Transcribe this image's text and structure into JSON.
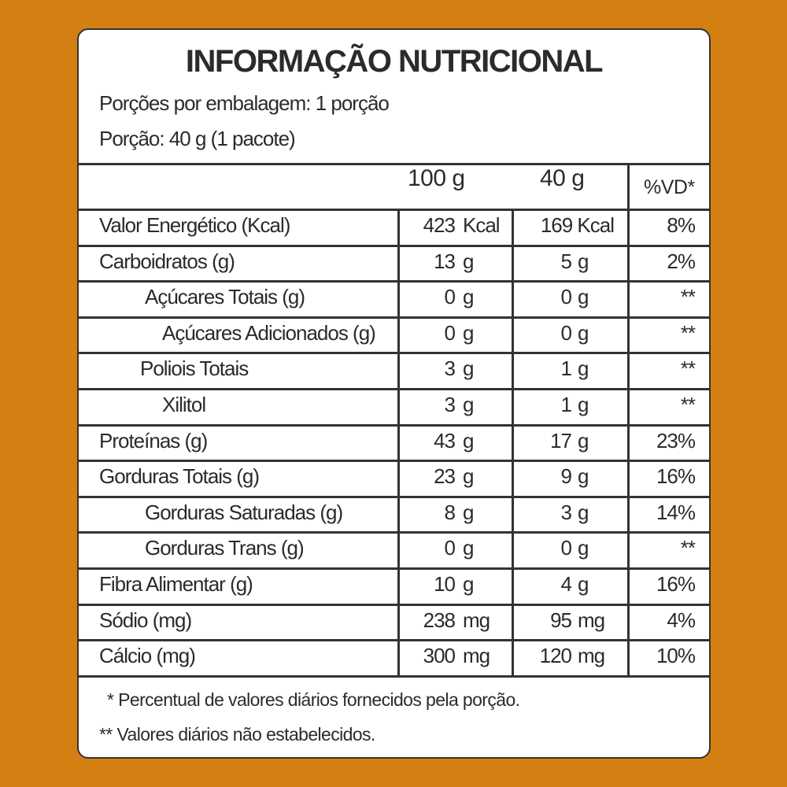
{
  "title": "INFORMAÇÃO NUTRICIONAL",
  "servings_per_package": "Porções por embalagem: 1 porção",
  "serving_size": "Porção: 40 g (1 pacote)",
  "columns": {
    "per100": "100 g",
    "per_serving": "40 g",
    "dv": "%VD*"
  },
  "rows": [
    {
      "label": "Valor Energético (Kcal)",
      "indent": 0,
      "v100": "423",
      "u100": "Kcal",
      "v40": "169 Kcal",
      "u40": "",
      "dv": "8%"
    },
    {
      "label": "Carboidratos (g)",
      "indent": 0,
      "v100": "13",
      "u100": "g",
      "v40": "5",
      "u40": "g",
      "dv": "2%"
    },
    {
      "label": "Açúcares Totais (g)",
      "indent": 1,
      "v100": "0",
      "u100": "g",
      "v40": "0",
      "u40": "g",
      "dv": "**"
    },
    {
      "label": "Açúcares Adicionados (g)",
      "indent": 2,
      "v100": "0",
      "u100": "g",
      "v40": "0",
      "u40": "g",
      "dv": "**"
    },
    {
      "label": "Poliois Totais",
      "indent": 1,
      "v100": "3",
      "u100": "g",
      "v40": "1",
      "u40": "g",
      "dv": "**"
    },
    {
      "label": "Xilitol",
      "indent": 2,
      "v100": "3",
      "u100": "g",
      "v40": "1",
      "u40": "g",
      "dv": "**"
    },
    {
      "label": "Proteínas (g)",
      "indent": 0,
      "v100": "43",
      "u100": "g",
      "v40": "17",
      "u40": "g",
      "dv": "23%"
    },
    {
      "label": "Gorduras Totais (g)",
      "indent": 0,
      "v100": "23",
      "u100": "g",
      "v40": "9",
      "u40": "g",
      "dv": "16%"
    },
    {
      "label": "Gorduras Saturadas (g)",
      "indent": 1,
      "v100": "8",
      "u100": "g",
      "v40": "3",
      "u40": "g",
      "dv": "14%"
    },
    {
      "label": "Gorduras Trans (g)",
      "indent": 1,
      "v100": "0",
      "u100": "g",
      "v40": "0",
      "u40": "g",
      "dv": "**"
    },
    {
      "label": "Fibra Alimentar (g)",
      "indent": 0,
      "v100": "10",
      "u100": "g",
      "v40": "4",
      "u40": "g",
      "dv": "16%"
    },
    {
      "label": "Sódio (mg)",
      "indent": 0,
      "v100": "238",
      "u100": "mg",
      "v40": "95",
      "u40": "mg",
      "dv": "4%"
    },
    {
      "label": "Cálcio (mg)",
      "indent": 0,
      "v100": "300",
      "u100": "mg",
      "v40": "120",
      "u40": "mg",
      "dv": "10%"
    }
  ],
  "footnotes": [
    "* Percentual de valores diários fornecidos pela porção.",
    "** Valores diários não estabelecidos."
  ]
}
